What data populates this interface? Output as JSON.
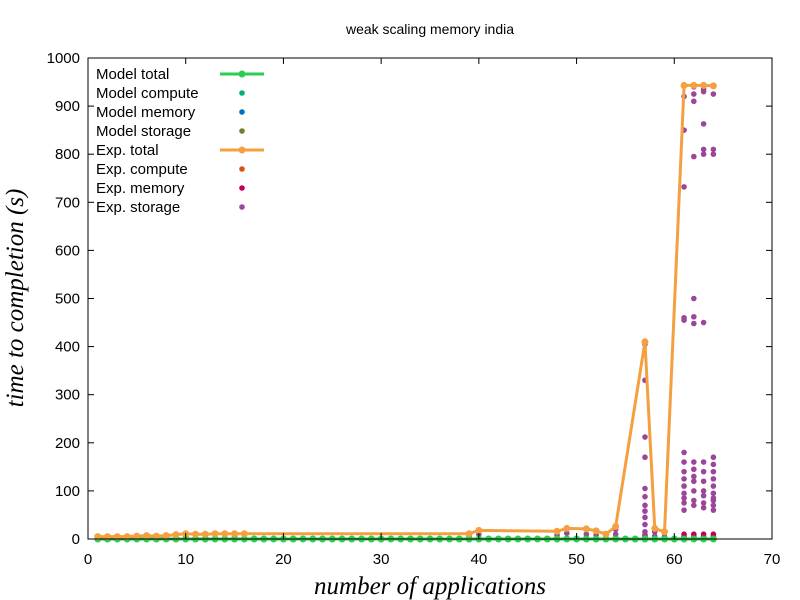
{
  "chart_data": {
    "type": "line",
    "title": "weak scaling memory india",
    "xlabel": "number of applications",
    "ylabel": "time to completion (s)",
    "xlim": [
      0,
      70
    ],
    "ylim": [
      0,
      1000
    ],
    "xticks": [
      0,
      10,
      20,
      30,
      40,
      50,
      60,
      70
    ],
    "yticks": [
      0,
      100,
      200,
      300,
      400,
      500,
      600,
      700,
      800,
      900,
      1000
    ],
    "grid": false,
    "legend_position": "top-left",
    "series": [
      {
        "name": "Model total",
        "kind": "line",
        "color": "#2ecc50",
        "x": [
          1,
          2,
          3,
          4,
          5,
          6,
          7,
          8,
          9,
          10,
          11,
          12,
          13,
          14,
          15,
          16,
          17,
          18,
          19,
          20,
          21,
          22,
          23,
          24,
          25,
          26,
          27,
          28,
          29,
          30,
          31,
          32,
          33,
          34,
          35,
          36,
          37,
          38,
          39,
          40,
          41,
          42,
          43,
          44,
          45,
          46,
          47,
          48,
          49,
          50,
          51,
          52,
          53,
          54,
          55,
          56,
          57,
          58,
          59,
          60,
          61,
          62,
          63,
          64
        ],
        "y": [
          0,
          0,
          0,
          0,
          0,
          0,
          0,
          0,
          0,
          0,
          0,
          0,
          0,
          0,
          0,
          0,
          0,
          0,
          0,
          0,
          0,
          0,
          0,
          0,
          0,
          0,
          0,
          0,
          0,
          0,
          0,
          0,
          0,
          0,
          0,
          0,
          0,
          0,
          0,
          0,
          0,
          0,
          0,
          0,
          0,
          0,
          0,
          0,
          0,
          0,
          0,
          0,
          0,
          0,
          0,
          0,
          0,
          0,
          0,
          0,
          0,
          0,
          0,
          0
        ]
      },
      {
        "name": "Model compute",
        "kind": "points",
        "color": "#00b07a",
        "x": [
          1,
          2,
          3,
          4,
          5,
          6,
          7,
          8,
          9,
          10,
          11,
          12,
          13,
          14,
          15,
          16,
          20,
          25,
          30,
          35,
          39,
          40,
          45,
          48,
          49,
          51,
          52,
          54,
          56,
          57,
          58,
          59,
          61,
          62,
          63,
          64
        ],
        "y": [
          0,
          0,
          0,
          0,
          0,
          0,
          0,
          0,
          0,
          0,
          0,
          0,
          0,
          0,
          0,
          0,
          0,
          0,
          0,
          0,
          0,
          0,
          0,
          0,
          0,
          0,
          0,
          0,
          0,
          0,
          0,
          0,
          0,
          0,
          0,
          0
        ]
      },
      {
        "name": "Model memory",
        "kind": "points",
        "color": "#0072bd",
        "x": [
          1,
          5,
          10,
          15,
          39,
          48,
          51,
          54,
          57,
          58,
          61,
          62,
          63,
          64
        ],
        "y": [
          1,
          1,
          1,
          1,
          1,
          1,
          1,
          1,
          1,
          1,
          1,
          1,
          1,
          1
        ]
      },
      {
        "name": "Model storage",
        "kind": "points",
        "color": "#7a7a30",
        "x": [
          1,
          5,
          10,
          15,
          39,
          48,
          51,
          54,
          57,
          58,
          61,
          62,
          63,
          64
        ],
        "y": [
          0.5,
          0.5,
          0.5,
          0.5,
          0.5,
          0.5,
          0.5,
          0.5,
          0.5,
          0.5,
          0.5,
          0.5,
          0.5,
          0.5
        ]
      },
      {
        "name": "Exp.  total",
        "kind": "line",
        "color": "#f5a040",
        "x": [
          1,
          2,
          3,
          4,
          5,
          6,
          7,
          8,
          9,
          10,
          11,
          12,
          13,
          14,
          15,
          16,
          39,
          40,
          48,
          49,
          51,
          52,
          53,
          54,
          57,
          58,
          59,
          61,
          62,
          63,
          64
        ],
        "y": [
          5,
          5,
          5,
          5,
          6,
          7,
          6,
          7,
          9,
          11,
          10,
          10,
          11,
          11,
          11,
          11,
          11,
          18,
          16,
          22,
          21,
          17,
          10,
          26,
          410,
          22,
          15,
          943,
          943,
          943,
          942
        ]
      },
      {
        "name": "Exp.  compute",
        "kind": "points",
        "color": "#d95319",
        "x": [
          1,
          5,
          10,
          15,
          39,
          48,
          51,
          54,
          57,
          58,
          61,
          62,
          63,
          64
        ],
        "y": [
          3,
          3,
          3,
          3,
          3,
          3,
          3,
          3,
          3,
          3,
          3,
          3,
          3,
          3
        ]
      },
      {
        "name": "Exp.  memory",
        "kind": "points",
        "color": "#c0005a",
        "x": [
          57,
          57,
          61,
          61,
          62,
          62,
          63,
          63,
          64,
          64
        ],
        "y": [
          3,
          8,
          5,
          10,
          5,
          10,
          5,
          10,
          5,
          10
        ]
      },
      {
        "name": "Exp.  storage",
        "kind": "points",
        "color": "#9b459b",
        "x": [
          1,
          5,
          10,
          15,
          39,
          40,
          48,
          49,
          51,
          52,
          54,
          54,
          57,
          57,
          57,
          57,
          57,
          57,
          57,
          57,
          57,
          57,
          57,
          57,
          58,
          58,
          59,
          61,
          61,
          61,
          61,
          61,
          61,
          61,
          61,
          61,
          61,
          61,
          61,
          61,
          61,
          62,
          62,
          62,
          62,
          62,
          62,
          62,
          62,
          62,
          62,
          62,
          62,
          62,
          62,
          63,
          63,
          63,
          63,
          63,
          63,
          63,
          63,
          63,
          63,
          63,
          63,
          63,
          64,
          64,
          64,
          64,
          64,
          64,
          64,
          64,
          64,
          64,
          64,
          64,
          64
        ],
        "y": [
          3,
          4,
          5,
          6,
          6,
          10,
          8,
          12,
          10,
          8,
          10,
          20,
          405,
          330,
          212,
          170,
          105,
          88,
          70,
          58,
          45,
          30,
          15,
          5,
          15,
          6,
          5,
          920,
          850,
          732,
          460,
          455,
          180,
          160,
          140,
          125,
          110,
          95,
          85,
          75,
          60,
          940,
          925,
          910,
          795,
          500,
          462,
          448,
          160,
          145,
          130,
          120,
          100,
          80,
          70,
          935,
          930,
          863,
          810,
          800,
          450,
          160,
          140,
          120,
          100,
          90,
          75,
          65,
          925,
          810,
          800,
          170,
          155,
          140,
          125,
          110,
          95,
          85,
          80,
          70,
          60
        ]
      }
    ]
  }
}
